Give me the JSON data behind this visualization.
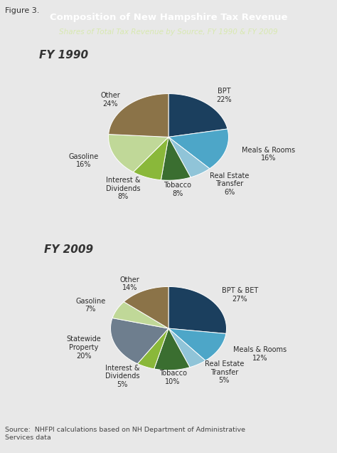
{
  "title": "Composition of New Hampshire Tax Revenue",
  "subtitle": "Shares of Total Tax Revenue by Source, FY 1990 & FY 2009",
  "title_bg_color": "#5a6835",
  "title_text_color": "#ffffff",
  "subtitle_text_color": "#d8e8b0",
  "figure_label": "Figure 3.",
  "source_text": "Source:  NHFPI calculations based on NH Department of Administrative\nServices data",
  "bg_color": "#ffffff",
  "outer_bg_color": "#e8e8e8",
  "fy1990": {
    "label": "FY 1990",
    "values": [
      22,
      16,
      6,
      8,
      8,
      16,
      24
    ],
    "colors": [
      "#1b3f5e",
      "#4da6c8",
      "#90c4d8",
      "#3a6e30",
      "#8ab83a",
      "#c0d898",
      "#8b7348"
    ],
    "labels_pct": [
      "BPT\n22%",
      "Meals & Rooms\n16%",
      "Real Estate\nTransfer\n6%",
      "Tobacco\n8%",
      "Interest &\nDividends\n8%",
      "Gasoline\n16%",
      "Other\n24%"
    ],
    "startangle": 90,
    "label_distances": [
      1.25,
      1.28,
      1.28,
      1.22,
      1.28,
      1.28,
      1.18
    ]
  },
  "fy2009": {
    "label": "FY 2009",
    "values": [
      27,
      12,
      5,
      10,
      5,
      20,
      7,
      14
    ],
    "colors": [
      "#1b3f5e",
      "#4da6c8",
      "#90c4d8",
      "#3a6e30",
      "#8ab83a",
      "#6e7e8e",
      "#c0d898",
      "#8b7348"
    ],
    "labels_pct": [
      "BPT & BET\n27%",
      "Meals & Rooms\n12%",
      "Real Estate\nTransfer\n5%",
      "Tobacco\n10%",
      "Interest &\nDividends\n5%",
      "Statewide\nProperty\n20%",
      "Gasoline\n7%",
      "Other\n14%"
    ],
    "startangle": 90,
    "label_distances": [
      1.22,
      1.28,
      1.22,
      1.18,
      1.25,
      1.25,
      1.22,
      1.18
    ]
  },
  "label_fontsize": 7.0,
  "year_label_fontsize": 11,
  "pie_aspect": 0.72
}
